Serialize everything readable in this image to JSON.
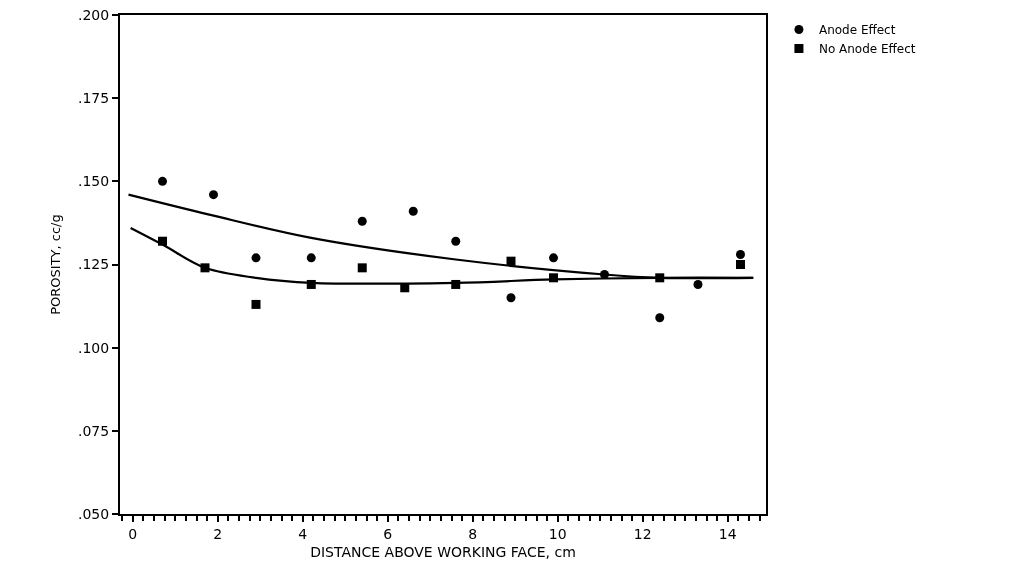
{
  "chart_data": {
    "type": "scatter",
    "xlabel": "DISTANCE ABOVE WORKING FACE, cm",
    "ylabel": "POROSITY, cc/g",
    "xlim": [
      -0.3,
      14.9
    ],
    "xticks": [
      0,
      2,
      4,
      6,
      8,
      10,
      12,
      14
    ],
    "ylim": [
      0.05,
      0.2
    ],
    "yticks": [
      {
        "value": 0.05,
        "label": ".050"
      },
      {
        "value": 0.075,
        "label": ".075"
      },
      {
        "value": 0.1,
        "label": ".100"
      },
      {
        "value": 0.125,
        "label": ".125"
      },
      {
        "value": 0.15,
        "label": ".150"
      },
      {
        "value": 0.175,
        "label": ".175"
      },
      {
        "value": 0.2,
        "label": ".200"
      }
    ],
    "grid": false,
    "legend": "top right",
    "series": [
      {
        "name": "Anode Effect",
        "color": "#000000",
        "marker": "circle",
        "x": [
          0.7,
          1.9,
          2.9,
          4.2,
          5.4,
          6.6,
          7.6,
          8.9,
          9.9,
          11.1,
          12.4,
          13.3,
          14.3
        ],
        "values": [
          0.15,
          0.146,
          0.127,
          0.127,
          0.138,
          0.141,
          0.132,
          0.115,
          0.127,
          0.122,
          0.109,
          0.119,
          0.128
        ]
      },
      {
        "name": "No Anode Effect",
        "color": "#000000",
        "marker": "square",
        "x": [
          0.7,
          1.7,
          2.9,
          4.2,
          5.4,
          6.4,
          7.6,
          8.9,
          9.9,
          12.4,
          14.3
        ],
        "values": [
          0.132,
          0.124,
          0.113,
          0.119,
          0.124,
          0.118,
          0.119,
          0.126,
          0.121,
          0.121,
          0.125
        ]
      },
      {
        "type": "line",
        "color": "#000000",
        "line_style": "solid",
        "x": [
          -0.1,
          1.8,
          4.2,
          7.6,
          11.1,
          12.4,
          14.6
        ],
        "values": [
          0.146,
          0.14,
          0.133,
          0.1265,
          0.122,
          0.121,
          0.121
        ]
      },
      {
        "type": "line",
        "color": "#000000",
        "line_style": "solid",
        "x": [
          -0.05,
          0.7,
          1.7,
          2.9,
          4.2,
          7.6,
          9.9,
          12.4,
          14.6
        ],
        "values": [
          0.136,
          0.131,
          0.124,
          0.121,
          0.1195,
          0.1195,
          0.1205,
          0.121,
          0.121
        ]
      }
    ]
  }
}
